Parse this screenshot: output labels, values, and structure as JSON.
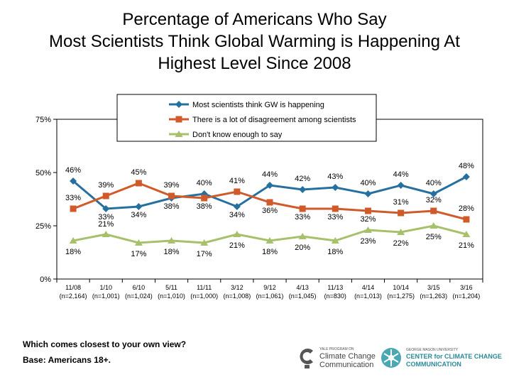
{
  "title_lines": [
    "Percentage of Americans Who Say",
    "Most Scientists Think Global Warming is Happening At",
    "Highest Level Since 2008"
  ],
  "footer": {
    "question": "Which comes closest to your own view?",
    "base": "Base: Americans 18+."
  },
  "logos": {
    "yale": {
      "small": "YALE PROGRAM ON",
      "line1": "Climate Change",
      "line2": "Communication",
      "color": "#555555"
    },
    "gmu": {
      "small": "GEORGE MASON UNIVERSITY",
      "line1": "CENTER for CLIMATE CHANGE",
      "line2": "COMMUNICATION",
      "color": "#2a8a9a"
    }
  },
  "chart_data": {
    "type": "line",
    "categories": [
      "11/08",
      "1/10",
      "6/10",
      "5/11",
      "11/11",
      "3/12",
      "9/12",
      "4/13",
      "11/13",
      "4/14",
      "10/14",
      "3/15",
      "3/16"
    ],
    "category_sublabels": [
      "(n=2,164)",
      "(n=1,001)",
      "(n=1,024)",
      "(n=1,010)",
      "(n=1,000)",
      "(n=1,008)",
      "(n=1,061)",
      "(n=1,045)",
      "(n=830)",
      "(n=1,013)",
      "(n=1,275)",
      "(n=1,263)",
      "(n=1,204)"
    ],
    "ylim": [
      0,
      75
    ],
    "yticks": [
      0,
      25,
      50,
      75
    ],
    "ytick_labels": [
      "0%",
      "25%",
      "50%",
      "75%"
    ],
    "legend_position": "top-center",
    "series": [
      {
        "name": "Most scientists think GW is happening",
        "color": "#2670A0",
        "marker": "diamond",
        "values": [
          46,
          33,
          34,
          38,
          40,
          34,
          44,
          42,
          43,
          40,
          44,
          40,
          48
        ],
        "labels": [
          "46%",
          "33%",
          "34%",
          "38%",
          "40%",
          "34%",
          "44%",
          "42%",
          "43%",
          "40%",
          "44%",
          "40%",
          "48%"
        ]
      },
      {
        "name": "There is a lot of disagreement among scientists",
        "color": "#D15A2A",
        "marker": "square",
        "values": [
          33,
          39,
          45,
          39,
          38,
          41,
          36,
          33,
          33,
          32,
          31,
          32,
          28
        ],
        "labels": [
          "33%",
          "39%",
          "45%",
          "39%",
          "38%",
          "41%",
          "36%",
          "33%",
          "33%",
          "32%",
          "31%",
          "32%",
          "28%"
        ]
      },
      {
        "name": "Don't know enough to say",
        "color": "#A6C16A",
        "marker": "triangle",
        "values": [
          18,
          21,
          17,
          18,
          17,
          21,
          18,
          20,
          18,
          23,
          22,
          25,
          21
        ],
        "labels": [
          "18%",
          "21%",
          "17%",
          "18%",
          "17%",
          "21%",
          "18%",
          "20%",
          "18%",
          "23%",
          "22%",
          "25%",
          "21%"
        ]
      }
    ]
  }
}
